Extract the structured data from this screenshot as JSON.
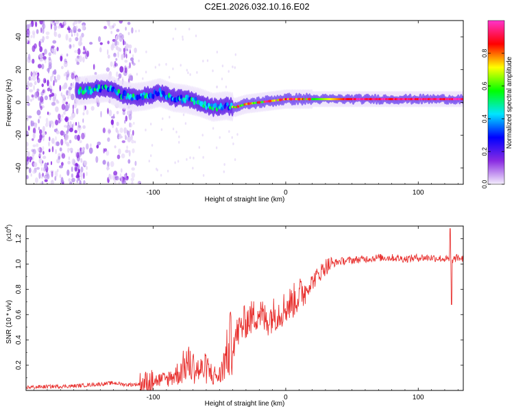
{
  "title": "C2E1.2026.032.10.16.E02",
  "chart_data": [
    {
      "type": "heatmap",
      "name": "spectrogram",
      "xlabel": "Height of straight line (km)",
      "ylabel": "Frequency (Hz)",
      "xlim": [
        -196,
        134
      ],
      "ylim": [
        -50,
        50
      ],
      "xticks": [
        -100,
        0,
        100
      ],
      "xtick_labels": [
        "-100",
        "0",
        "100"
      ],
      "yticks": [
        -40,
        -20,
        0,
        20,
        40
      ],
      "ytick_labels": [
        "-40",
        "-20",
        "0",
        "20",
        "40"
      ],
      "ridge": {
        "x": [
          -155,
          -145,
          -135,
          -125,
          -115,
          -105,
          -95,
          -85,
          -75,
          -65,
          -55,
          -45,
          -38,
          -30,
          -20,
          -10,
          0,
          20,
          50,
          80,
          110,
          134
        ],
        "freq": [
          7,
          8,
          9,
          5,
          3,
          4,
          6,
          3,
          2,
          0,
          -3,
          -2,
          -3,
          -1,
          0,
          1,
          2,
          2,
          2,
          2,
          2,
          2
        ]
      },
      "colorbar": {
        "label": "Normalized spectral amplitude",
        "range": [
          0,
          1
        ],
        "ticks": [
          0.0,
          0.2,
          0.4,
          0.6,
          0.8
        ],
        "tick_labels": [
          "0.0",
          "0.2",
          "0.4",
          "0.6",
          "0.8"
        ],
        "colors": [
          "#f4eefc",
          "#8a2be2",
          "#0000ff",
          "#00e5ff",
          "#00ff00",
          "#ffff00",
          "#ff0000",
          "#ff33cc"
        ]
      }
    },
    {
      "type": "line",
      "name": "snr",
      "xlabel": "Height of straight line (km)",
      "ylabel": "SNR (10 * v/v)",
      "scale_label": "(x10",
      "scale_exp": "4",
      "xlim": [
        -196,
        134
      ],
      "ylim": [
        0,
        1.3
      ],
      "xticks": [
        -100,
        0,
        100
      ],
      "xtick_labels": [
        "-100",
        "0",
        "100"
      ],
      "yticks": [
        0.2,
        0.4,
        0.6,
        0.8,
        1.0,
        1.2
      ],
      "ytick_labels": [
        "0.2",
        "0.4",
        "0.6",
        "0.8",
        "1.0",
        "1.2"
      ],
      "color": "#e8312f",
      "series": [
        {
          "name": "SNR",
          "x": [
            -196,
            -180,
            -160,
            -140,
            -130,
            -120,
            -110,
            -100,
            -90,
            -80,
            -75,
            -70,
            -65,
            -60,
            -55,
            -50,
            -45,
            -40,
            -35,
            -30,
            -25,
            -20,
            -15,
            -10,
            -5,
            0,
            5,
            10,
            15,
            20,
            25,
            30,
            40,
            50,
            60,
            70,
            80,
            90,
            100,
            110,
            120,
            125,
            130,
            134
          ],
          "y": [
            0.025,
            0.03,
            0.035,
            0.05,
            0.06,
            0.045,
            0.05,
            0.07,
            0.08,
            0.13,
            0.2,
            0.17,
            0.14,
            0.16,
            0.11,
            0.1,
            0.24,
            0.38,
            0.48,
            0.55,
            0.58,
            0.62,
            0.55,
            0.6,
            0.62,
            0.66,
            0.7,
            0.75,
            0.8,
            0.86,
            0.92,
            0.98,
            1.02,
            1.03,
            1.04,
            1.05,
            1.05,
            1.04,
            1.05,
            1.05,
            1.04,
            1.03,
            1.05,
            1.04
          ]
        }
      ]
    }
  ]
}
